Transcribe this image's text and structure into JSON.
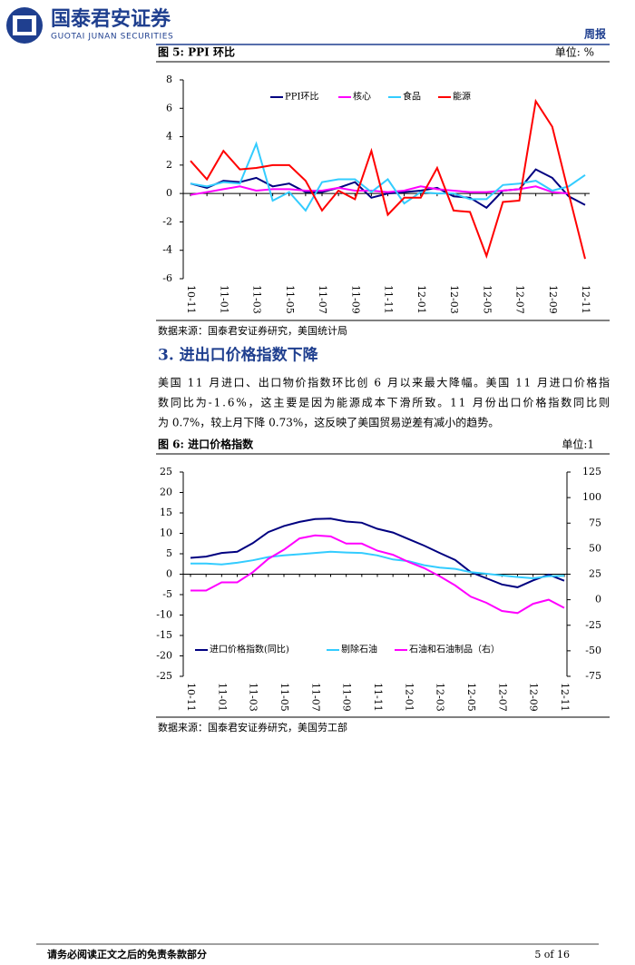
{
  "header": {
    "logo_cn": "国泰君安证券",
    "logo_en": "GUOTAI JUNAN SECURITIES",
    "report_type": "周报"
  },
  "section": {
    "heading": "3.  进出口价格指数下降",
    "paragraph": [
      "美国 11 月进口、出口物价指数环比创 6 月以来最大降幅。美国 11 月进口价格指",
      "数同比为-1.6%，这主要是因为能源成本下滑所致。11 月份出口价格指数同比则",
      "为 0.7%，较上月下降 0.73%，这反映了美国贸易逆差有减小的趋势。"
    ]
  },
  "chart_data": [
    {
      "type": "line",
      "title": "图 5:  PPI 环比",
      "unit": "单位:  %",
      "source": "数据来源：国泰君安证券研究，美国统计局",
      "categories": [
        "10-11",
        null,
        "11-01",
        null,
        "11-03",
        null,
        "11-05",
        null,
        "11-07",
        null,
        "11-09",
        null,
        "11-11",
        null,
        "12-01",
        null,
        "12-03",
        null,
        "12-05",
        null,
        "12-07",
        null,
        "12-09",
        null,
        "12-11"
      ],
      "series": [
        {
          "name": "PPI环比",
          "color": "#000080",
          "values": [
            0.7,
            0.4,
            0.9,
            0.8,
            1.1,
            0.5,
            0.7,
            0.1,
            0.1,
            0.4,
            0.8,
            -0.3,
            0.0,
            0.1,
            0.2,
            0.4,
            -0.2,
            -0.3,
            -1.0,
            0.2,
            0.3,
            1.7,
            1.1,
            -0.2,
            -0.8
          ]
        },
        {
          "name": "核心",
          "color": "#ff00ff",
          "values": [
            -0.1,
            0.1,
            0.3,
            0.5,
            0.2,
            0.3,
            0.3,
            0.2,
            0.2,
            0.4,
            0.2,
            0.2,
            0.1,
            0.2,
            0.5,
            0.3,
            0.2,
            0.1,
            0.1,
            0.2,
            0.3,
            0.5,
            0.1,
            0.0,
            null
          ]
        },
        {
          "name": "食品",
          "color": "#33ccff",
          "values": [
            0.7,
            0.5,
            0.8,
            0.7,
            3.5,
            -0.5,
            0.1,
            -1.2,
            0.8,
            1.0,
            1.0,
            0.1,
            1.0,
            -0.7,
            0.1,
            0.0,
            0.0,
            -0.4,
            -0.4,
            0.6,
            0.7,
            0.9,
            0.2,
            0.5,
            1.3
          ]
        },
        {
          "name": "能源",
          "color": "#ff0000",
          "values": [
            2.3,
            1.0,
            3.0,
            1.7,
            1.8,
            2.0,
            2.0,
            0.9,
            -1.2,
            0.2,
            -0.4,
            3.0,
            -1.5,
            -0.3,
            -0.3,
            1.8,
            -1.2,
            -1.3,
            -4.4,
            -0.6,
            -0.5,
            6.5,
            4.7,
            0.0,
            -4.6
          ]
        }
      ],
      "ylim": [
        -6,
        8
      ],
      "yticks": [
        -6,
        -4,
        -2,
        0,
        2,
        4,
        6,
        8
      ]
    },
    {
      "type": "line",
      "title": "图 6:  进口价格指数",
      "unit": "单位:1",
      "source": "数据来源：国泰君安证券研究，美国劳工部",
      "categories": [
        "10-11",
        null,
        "11-01",
        null,
        "11-03",
        null,
        "11-05",
        null,
        "11-07",
        null,
        "11-09",
        null,
        "11-11",
        null,
        "12-01",
        null,
        "12-03",
        null,
        "12-05",
        null,
        "12-07",
        null,
        "12-09",
        null,
        "12-11"
      ],
      "series": [
        {
          "name": "进口价格指数(同比)",
          "color": "#000080",
          "values": [
            4.0,
            4.3,
            5.2,
            5.5,
            7.6,
            10.3,
            11.8,
            12.8,
            13.5,
            13.6,
            12.9,
            12.6,
            11.1,
            10.2,
            8.6,
            7.0,
            5.2,
            3.5,
            0.5,
            -1.0,
            -2.5,
            -3.2,
            -1.5,
            -0.1,
            -1.6
          ]
        },
        {
          "name": "剔除石油",
          "color": "#33ccff",
          "values": [
            2.6,
            2.6,
            2.4,
            2.8,
            3.4,
            4.2,
            4.6,
            4.9,
            5.2,
            5.5,
            5.3,
            5.2,
            4.6,
            3.6,
            3.2,
            2.2,
            1.6,
            1.3,
            0.5,
            0.1,
            -0.3,
            -0.7,
            -1.0,
            -0.5,
            -0.4
          ]
        },
        {
          "name": "石油和石油制品（右）",
          "color": "#ff00ff",
          "axis": "y2",
          "values": [
            9,
            9,
            17,
            17,
            27,
            40,
            49,
            60,
            63,
            62,
            55,
            55,
            48,
            44,
            37,
            31,
            23,
            14,
            3,
            -3,
            -11,
            -13,
            -4,
            0,
            -8
          ]
        }
      ],
      "ylim": [
        -25,
        25
      ],
      "yticks": [
        -25,
        -20,
        -15,
        -10,
        -5,
        0,
        5,
        10,
        15,
        20,
        25
      ],
      "y2lim": [
        -75,
        125
      ],
      "y2ticks": [
        -75,
        -50,
        -25,
        0,
        25,
        50,
        75,
        100,
        125
      ]
    }
  ],
  "footer": {
    "disclaimer": "请务必阅读正文之后的免责条款部分",
    "page": "5 of 16"
  }
}
